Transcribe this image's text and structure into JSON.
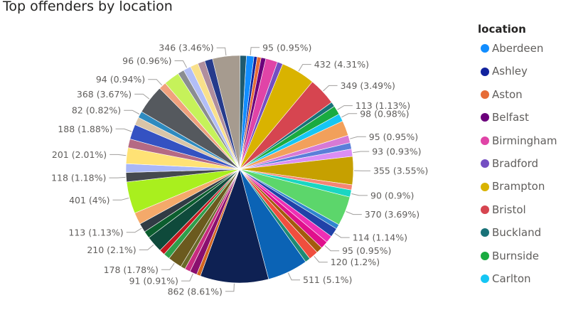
{
  "chart_data": {
    "type": "pie",
    "title": "Top offenders by location",
    "legend_title": "location",
    "legend_position": "right",
    "legend": [
      {
        "name": "Aberdeen",
        "color": "#118DFF"
      },
      {
        "name": "Ashley",
        "color": "#12239E"
      },
      {
        "name": "Aston",
        "color": "#E66C37"
      },
      {
        "name": "Belfast",
        "color": "#6B007B"
      },
      {
        "name": "Birmingham",
        "color": "#E044A7"
      },
      {
        "name": "Bradford",
        "color": "#744EC2"
      },
      {
        "name": "Brampton",
        "color": "#D9B300"
      },
      {
        "name": "Bristol",
        "color": "#D64550"
      },
      {
        "name": "Buckland",
        "color": "#197278"
      },
      {
        "name": "Burnside",
        "color": "#1AAB40"
      },
      {
        "name": "Carlton",
        "color": "#15C6F4"
      }
    ],
    "slices": [
      {
        "value": 95,
        "label": "95 (0.95%)",
        "color": "#118DFF"
      },
      {
        "value": 40,
        "label": "",
        "color": "#12239E"
      },
      {
        "value": 50,
        "label": "",
        "color": "#E66C37"
      },
      {
        "value": 60,
        "label": "",
        "color": "#6B007B"
      },
      {
        "value": 150,
        "label": "",
        "color": "#E044A7"
      },
      {
        "value": 70,
        "label": "",
        "color": "#744EC2"
      },
      {
        "value": 432,
        "label": "432 (4.31%)",
        "color": "#D9B300"
      },
      {
        "value": 349,
        "label": "349 (3.49%)",
        "color": "#D64550"
      },
      {
        "value": 60,
        "label": "",
        "color": "#197278"
      },
      {
        "value": 113,
        "label": "113 (1.13%)",
        "color": "#1AAB40"
      },
      {
        "value": 98,
        "label": "98 (0.98%)",
        "color": "#15C6F4"
      },
      {
        "value": 190,
        "label": "",
        "color": "#F2A05B"
      },
      {
        "value": 95,
        "label": "95 (0.95%)",
        "color": "#D77AD5"
      },
      {
        "value": 80,
        "label": "",
        "color": "#5B7ED9"
      },
      {
        "value": 93,
        "label": "93 (0.93%)",
        "color": "#DB8EF5"
      },
      {
        "value": 355,
        "label": "355 (3.55%)",
        "color": "#C6A000"
      },
      {
        "value": 65,
        "label": "",
        "color": "#F58575"
      },
      {
        "value": 90,
        "label": "90 (0.9%)",
        "color": "#1AD6C2"
      },
      {
        "value": 370,
        "label": "370 (3.69%)",
        "color": "#5CD66B"
      },
      {
        "value": 60,
        "label": "",
        "color": "#3086CE"
      },
      {
        "value": 114,
        "label": "114 (1.14%)",
        "color": "#2142A8"
      },
      {
        "value": 90,
        "label": "",
        "color": "#EE2FB5"
      },
      {
        "value": 95,
        "label": "95 (0.95%)",
        "color": "#E0108C"
      },
      {
        "value": 80,
        "label": "",
        "color": "#A35A0C"
      },
      {
        "value": 120,
        "label": "120 (1.2%)",
        "color": "#F04E3E"
      },
      {
        "value": 65,
        "label": "",
        "color": "#1E8A73"
      },
      {
        "value": 511,
        "label": "511 (5.1%)",
        "color": "#0B63B5"
      },
      {
        "value": 862,
        "label": "862 (8.61%)",
        "color": "#0E2153"
      },
      {
        "value": 50,
        "label": "",
        "color": "#D36620"
      },
      {
        "value": 91,
        "label": "91 (0.91%)",
        "color": "#8A0F6E"
      },
      {
        "value": 70,
        "label": "",
        "color": "#C72B7F"
      },
      {
        "value": 60,
        "label": "",
        "color": "#6A6A2A"
      },
      {
        "value": 178,
        "label": "178 (1.78%)",
        "color": "#6B5A1E"
      },
      {
        "value": 80,
        "label": "",
        "color": "#2F9E4A"
      },
      {
        "value": 70,
        "label": "",
        "color": "#C4171F"
      },
      {
        "value": 210,
        "label": "210 (2.1%)",
        "color": "#0F4A3B"
      },
      {
        "value": 90,
        "label": "",
        "color": "#0B5E2E"
      },
      {
        "value": 113,
        "label": "113 (1.13%)",
        "color": "#313B44"
      },
      {
        "value": 150,
        "label": "",
        "color": "#F4A96A"
      },
      {
        "value": 401,
        "label": "401 (4%)",
        "color": "#A9EF1E"
      },
      {
        "value": 118,
        "label": "118 (1.18%)",
        "color": "#45494F"
      },
      {
        "value": 110,
        "label": "",
        "color": "#A9B7F7"
      },
      {
        "value": 201,
        "label": "201 (2.01%)",
        "color": "#FFE275"
      },
      {
        "value": 110,
        "label": "",
        "color": "#B56A84"
      },
      {
        "value": 188,
        "label": "188 (1.88%)",
        "color": "#3452C2"
      },
      {
        "value": 100,
        "label": "",
        "color": "#D9C5A8"
      },
      {
        "value": 82,
        "label": "82 (0.82%)",
        "color": "#2E8BC0"
      },
      {
        "value": 368,
        "label": "368 (3.67%)",
        "color": "#55595E"
      },
      {
        "value": 94,
        "label": "94 (0.94%)",
        "color": "#F0A17D"
      },
      {
        "value": 200,
        "label": "",
        "color": "#C6F25A"
      },
      {
        "value": 80,
        "label": "",
        "color": "#8A8D91"
      },
      {
        "value": 96,
        "label": "96 (0.96%)",
        "color": "#B2BEF7"
      },
      {
        "value": 100,
        "label": "",
        "color": "#F9E08B"
      },
      {
        "value": 90,
        "label": "",
        "color": "#B08E9E"
      },
      {
        "value": 100,
        "label": "",
        "color": "#253B8C"
      },
      {
        "value": 346,
        "label": "346 (3.46%)",
        "color": "#A69B8F"
      },
      {
        "value": 80,
        "label": "",
        "color": "#1F5A6F"
      }
    ]
  }
}
